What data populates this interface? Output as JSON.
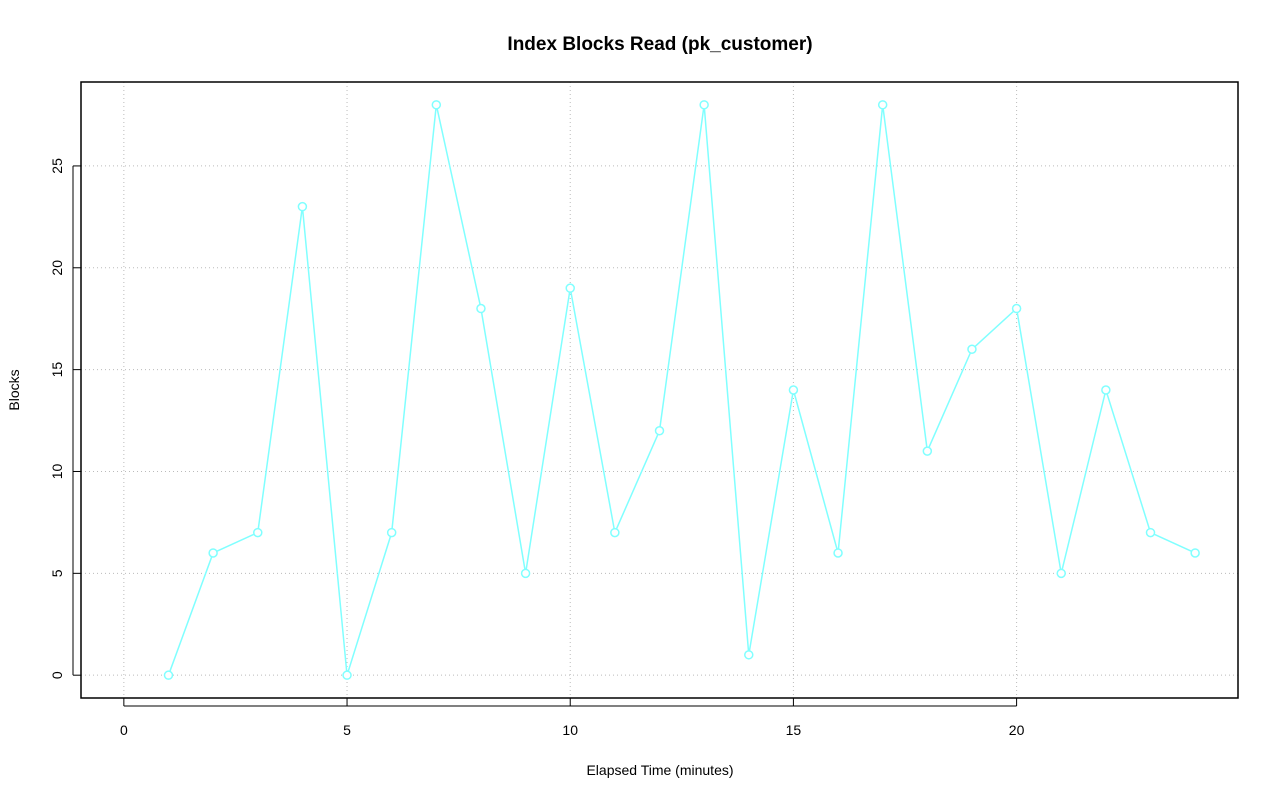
{
  "chart_data": {
    "type": "line",
    "title": "Index Blocks Read (pk_customer)",
    "x_label": "Elapsed Time (minutes)",
    "y_label": "Blocks",
    "x": [
      1,
      2,
      3,
      4,
      5,
      6,
      7,
      8,
      9,
      10,
      11,
      12,
      13,
      14,
      15,
      16,
      17,
      18,
      19,
      20,
      21,
      22,
      23,
      24
    ],
    "series": [
      {
        "name": "Blocks",
        "color": "#80ffff",
        "values": [
          0,
          6,
          7,
          23,
          0,
          7,
          28,
          18,
          5,
          19,
          7,
          12,
          28,
          1,
          14,
          6,
          28,
          11,
          16,
          18,
          5,
          14,
          7,
          6
        ]
      }
    ],
    "xlim": [
      -0.96,
      24.96
    ],
    "xticks": [
      0,
      5,
      10,
      15,
      20
    ],
    "ylim": [
      -1.12,
      29.12
    ],
    "yticks": [
      0,
      5,
      10,
      15,
      20,
      25
    ],
    "grid": true
  }
}
